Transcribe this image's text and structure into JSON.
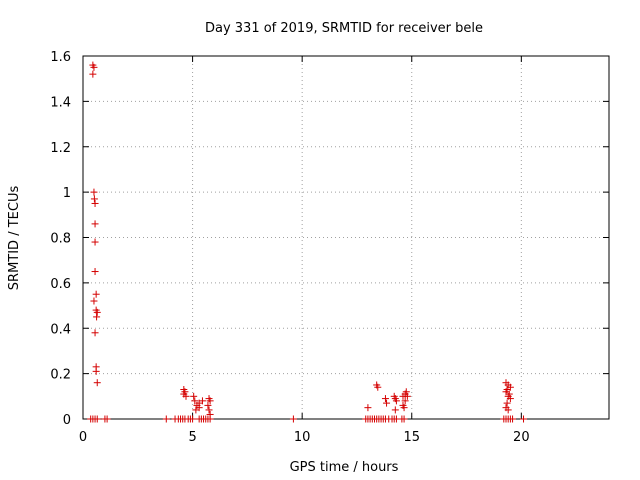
{
  "chart_data": {
    "type": "scatter",
    "title": "Day 331 of 2019, SRMTID for receiver bele",
    "xlabel": "GPS time / hours",
    "ylabel": "SRMTID / TECUs",
    "xlim": [
      0,
      24
    ],
    "ylim": [
      0,
      1.6
    ],
    "xticks": [
      0,
      5,
      10,
      15,
      20
    ],
    "yticks": [
      0,
      0.2,
      0.4,
      0.6,
      0.8,
      1,
      1.2,
      1.4,
      1.6
    ],
    "xtick_labels": [
      "0",
      "5",
      "10",
      "15",
      "20"
    ],
    "ytick_labels": [
      "0",
      "0.2",
      "0.4",
      "0.6",
      "0.8",
      "1",
      "1.2",
      "1.4",
      "1.6"
    ],
    "grid": true,
    "marker": "plus",
    "color": "#d40000",
    "series": [
      {
        "name": "SRMTID",
        "points": [
          [
            0.45,
            1.56
          ],
          [
            0.5,
            1.55
          ],
          [
            0.45,
            1.52
          ],
          [
            0.5,
            1.0
          ],
          [
            0.52,
            0.97
          ],
          [
            0.55,
            0.95
          ],
          [
            0.55,
            0.86
          ],
          [
            0.55,
            0.78
          ],
          [
            0.55,
            0.65
          ],
          [
            0.6,
            0.55
          ],
          [
            0.5,
            0.52
          ],
          [
            0.6,
            0.48
          ],
          [
            0.65,
            0.47
          ],
          [
            0.62,
            0.45
          ],
          [
            0.55,
            0.38
          ],
          [
            0.6,
            0.23
          ],
          [
            0.6,
            0.21
          ],
          [
            0.65,
            0.16
          ],
          [
            0.35,
            0.0
          ],
          [
            0.45,
            0.0
          ],
          [
            0.55,
            0.0
          ],
          [
            0.65,
            0.0
          ],
          [
            1.0,
            0.0
          ],
          [
            1.1,
            0.0
          ],
          [
            3.8,
            0.0
          ],
          [
            4.2,
            0.0
          ],
          [
            4.35,
            0.0
          ],
          [
            4.45,
            0.0
          ],
          [
            4.55,
            0.0
          ],
          [
            4.65,
            0.0
          ],
          [
            4.8,
            0.0
          ],
          [
            4.9,
            0.0
          ],
          [
            5.0,
            0.0
          ],
          [
            4.6,
            0.13
          ],
          [
            4.65,
            0.12
          ],
          [
            4.6,
            0.11
          ],
          [
            4.7,
            0.1
          ],
          [
            5.05,
            0.1
          ],
          [
            5.1,
            0.08
          ],
          [
            5.2,
            0.06
          ],
          [
            5.3,
            0.07
          ],
          [
            5.45,
            0.08
          ],
          [
            5.15,
            0.04
          ],
          [
            5.3,
            0.05
          ],
          [
            5.3,
            0.0
          ],
          [
            5.4,
            0.0
          ],
          [
            5.5,
            0.0
          ],
          [
            5.6,
            0.0
          ],
          [
            5.7,
            0.0
          ],
          [
            5.8,
            0.0
          ],
          [
            5.75,
            0.09
          ],
          [
            5.8,
            0.08
          ],
          [
            5.7,
            0.06
          ],
          [
            5.75,
            0.04
          ],
          [
            5.8,
            0.02
          ],
          [
            9.6,
            0.0
          ],
          [
            12.9,
            0.0
          ],
          [
            13.0,
            0.0
          ],
          [
            13.1,
            0.0
          ],
          [
            13.2,
            0.0
          ],
          [
            13.3,
            0.0
          ],
          [
            13.4,
            0.0
          ],
          [
            13.5,
            0.0
          ],
          [
            13.6,
            0.0
          ],
          [
            13.7,
            0.0
          ],
          [
            13.8,
            0.0
          ],
          [
            13.95,
            0.0
          ],
          [
            14.1,
            0.0
          ],
          [
            14.2,
            0.0
          ],
          [
            14.3,
            0.0
          ],
          [
            14.55,
            0.0
          ],
          [
            14.65,
            0.0
          ],
          [
            13.0,
            0.05
          ],
          [
            13.4,
            0.15
          ],
          [
            13.45,
            0.14
          ],
          [
            13.8,
            0.09
          ],
          [
            13.85,
            0.07
          ],
          [
            14.2,
            0.1
          ],
          [
            14.25,
            0.09
          ],
          [
            14.3,
            0.08
          ],
          [
            14.25,
            0.04
          ],
          [
            14.6,
            0.1
          ],
          [
            14.7,
            0.11
          ],
          [
            14.75,
            0.12
          ],
          [
            14.8,
            0.1
          ],
          [
            14.7,
            0.08
          ],
          [
            14.6,
            0.06
          ],
          [
            14.65,
            0.05
          ],
          [
            19.2,
            0.0
          ],
          [
            19.3,
            0.0
          ],
          [
            19.4,
            0.0
          ],
          [
            19.5,
            0.0
          ],
          [
            19.6,
            0.0
          ],
          [
            20.1,
            0.0
          ],
          [
            19.3,
            0.16
          ],
          [
            19.4,
            0.15
          ],
          [
            19.5,
            0.14
          ],
          [
            19.35,
            0.13
          ],
          [
            19.3,
            0.12
          ],
          [
            19.45,
            0.11
          ],
          [
            19.4,
            0.1
          ],
          [
            19.5,
            0.09
          ],
          [
            19.35,
            0.07
          ],
          [
            19.3,
            0.05
          ],
          [
            19.4,
            0.04
          ]
        ]
      }
    ]
  }
}
